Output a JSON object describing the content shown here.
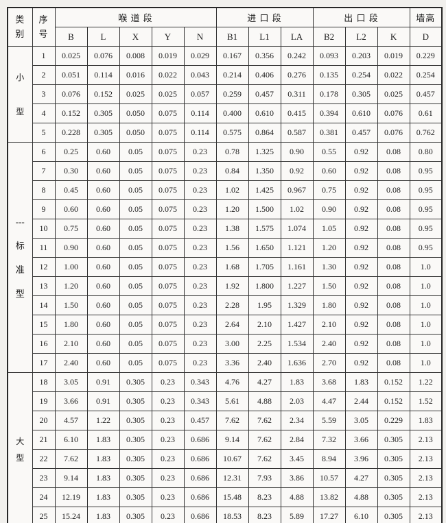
{
  "colors": {
    "page_background": "#f1f0ed",
    "cell_background": "#faf9f7",
    "border": "#333333",
    "text": "#1d1d1d"
  },
  "table": {
    "header": {
      "category": [
        "类",
        "别"
      ],
      "serial": [
        "序",
        "号"
      ],
      "sections": [
        {
          "label": "喉 道 段",
          "span": 5
        },
        {
          "label": "进 口 段",
          "span": 3
        },
        {
          "label": "出 口 段",
          "span": 3
        },
        {
          "label": "墙高",
          "span": 1
        }
      ],
      "columns": [
        "B",
        "L",
        "X",
        "Y",
        "N",
        "B1",
        "L1",
        "LA",
        "B2",
        "L2",
        "K",
        "D"
      ]
    },
    "groups": [
      {
        "label": [
          "小",
          "型"
        ],
        "rows": [
          {
            "no": "1",
            "values": [
              "0.025",
              "0.076",
              "0.008",
              "0.019",
              "0.029",
              "0.167",
              "0.356",
              "0.242",
              "0.093",
              "0.203",
              "0.019",
              "0.229"
            ]
          },
          {
            "no": "2",
            "values": [
              "0.051",
              "0.114",
              "0.016",
              "0.022",
              "0.043",
              "0.214",
              "0.406",
              "0.276",
              "0.135",
              "0.254",
              "0.022",
              "0.254"
            ]
          },
          {
            "no": "3",
            "values": [
              "0.076",
              "0.152",
              "0.025",
              "0.025",
              "0.057",
              "0.259",
              "0.457",
              "0.311",
              "0.178",
              "0.305",
              "0.025",
              "0.457"
            ]
          },
          {
            "no": "4",
            "values": [
              "0.152",
              "0.305",
              "0.050",
              "0.075",
              "0.114",
              "0.400",
              "0.610",
              "0.415",
              "0.394",
              "0.610",
              "0.076",
              "0.61"
            ]
          },
          {
            "no": "5",
            "values": [
              "0.228",
              "0.305",
              "0.050",
              "0.075",
              "0.114",
              "0.575",
              "0.864",
              "0.587",
              "0.381",
              "0.457",
              "0.076",
              "0.762"
            ]
          }
        ]
      },
      {
        "label": [
          "---",
          "标",
          "准",
          "型"
        ],
        "rows": [
          {
            "no": "6",
            "values": [
              "0.25",
              "0.60",
              "0.05",
              "0.075",
              "0.23",
              "0.78",
              "1.325",
              "0.90",
              "0.55",
              "0.92",
              "0.08",
              "0.80"
            ]
          },
          {
            "no": "7",
            "values": [
              "0.30",
              "0.60",
              "0.05",
              "0.075",
              "0.23",
              "0.84",
              "1.350",
              "0.92",
              "0.60",
              "0.92",
              "0.08",
              "0.95"
            ]
          },
          {
            "no": "8",
            "values": [
              "0.45",
              "0.60",
              "0.05",
              "0.075",
              "0.23",
              "1.02",
              "1.425",
              "0.967",
              "0.75",
              "0.92",
              "0.08",
              "0.95"
            ]
          },
          {
            "no": "9",
            "values": [
              "0.60",
              "0.60",
              "0.05",
              "0.075",
              "0.23",
              "1.20",
              "1.500",
              "1.02",
              "0.90",
              "0.92",
              "0.08",
              "0.95"
            ]
          },
          {
            "no": "10",
            "values": [
              "0.75",
              "0.60",
              "0.05",
              "0.075",
              "0.23",
              "1.38",
              "1.575",
              "1.074",
              "1.05",
              "0.92",
              "0.08",
              "0.95"
            ]
          },
          {
            "no": "11",
            "values": [
              "0.90",
              "0.60",
              "0.05",
              "0.075",
              "0.23",
              "1.56",
              "1.650",
              "1.121",
              "1.20",
              "0.92",
              "0.08",
              "0.95"
            ]
          },
          {
            "no": "12",
            "values": [
              "1.00",
              "0.60",
              "0.05",
              "0.075",
              "0.23",
              "1.68",
              "1.705",
              "1.161",
              "1.30",
              "0.92",
              "0.08",
              "1.0"
            ]
          },
          {
            "no": "13",
            "values": [
              "1.20",
              "0.60",
              "0.05",
              "0.075",
              "0.23",
              "1.92",
              "1.800",
              "1.227",
              "1.50",
              "0.92",
              "0.08",
              "1.0"
            ]
          },
          {
            "no": "14",
            "values": [
              "1.50",
              "0.60",
              "0.05",
              "0.075",
              "0.23",
              "2.28",
              "1.95",
              "1.329",
              "1.80",
              "0.92",
              "0.08",
              "1.0"
            ]
          },
          {
            "no": "15",
            "values": [
              "1.80",
              "0.60",
              "0.05",
              "0.075",
              "0.23",
              "2.64",
              "2.10",
              "1.427",
              "2.10",
              "0.92",
              "0.08",
              "1.0"
            ]
          },
          {
            "no": "16",
            "values": [
              "2.10",
              "0.60",
              "0.05",
              "0.075",
              "0.23",
              "3.00",
              "2.25",
              "1.534",
              "2.40",
              "0.92",
              "0.08",
              "1.0"
            ]
          },
          {
            "no": "17",
            "values": [
              "2.40",
              "0.60",
              "0.05",
              "0.075",
              "0.23",
              "3.36",
              "2.40",
              "1.636",
              "2.70",
              "0.92",
              "0.08",
              "1.0"
            ]
          }
        ]
      },
      {
        "label": [
          "大",
          "型"
        ],
        "rows": [
          {
            "no": "18",
            "values": [
              "3.05",
              "0.91",
              "0.305",
              "0.23",
              "0.343",
              "4.76",
              "4.27",
              "1.83",
              "3.68",
              "1.83",
              "0.152",
              "1.22"
            ]
          },
          {
            "no": "19",
            "values": [
              "3.66",
              "0.91",
              "0.305",
              "0.23",
              "0.343",
              "5.61",
              "4.88",
              "2.03",
              "4.47",
              "2.44",
              "0.152",
              "1.52"
            ]
          },
          {
            "no": "20",
            "values": [
              "4.57",
              "1.22",
              "0.305",
              "0.23",
              "0.457",
              "7.62",
              "7.62",
              "2.34",
              "5.59",
              "3.05",
              "0.229",
              "1.83"
            ]
          },
          {
            "no": "21",
            "values": [
              "6.10",
              "1.83",
              "0.305",
              "0.23",
              "0.686",
              "9.14",
              "7.62",
              "2.84",
              "7.32",
              "3.66",
              "0.305",
              "2.13"
            ]
          },
          {
            "no": "22",
            "values": [
              "7.62",
              "1.83",
              "0.305",
              "0.23",
              "0.686",
              "10.67",
              "7.62",
              "3.45",
              "8.94",
              "3.96",
              "0.305",
              "2.13"
            ]
          },
          {
            "no": "23",
            "values": [
              "9.14",
              "1.83",
              "0.305",
              "0.23",
              "0.686",
              "12.31",
              "7.93",
              "3.86",
              "10.57",
              "4.27",
              "0.305",
              "2.13"
            ]
          },
          {
            "no": "24",
            "values": [
              "12.19",
              "1.83",
              "0.305",
              "0.23",
              "0.686",
              "15.48",
              "8.23",
              "4.88",
              "13.82",
              "4.88",
              "0.305",
              "2.13"
            ]
          },
          {
            "no": "25",
            "values": [
              "15.24",
              "1.83",
              "0.305",
              "0.23",
              "0.686",
              "18.53",
              "8.23",
              "5.89",
              "17.27",
              "6.10",
              "0.305",
              "2.13"
            ]
          }
        ]
      }
    ]
  }
}
